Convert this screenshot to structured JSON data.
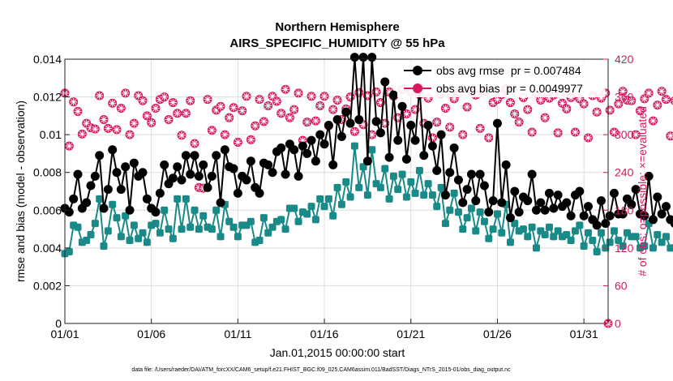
{
  "chart_data": {
    "type": "line",
    "title": [
      "Northern Hemisphere",
      "AIRS_SPECIFIC_HUMIDITY @ 55 hPa"
    ],
    "xlabel": "Jan.01,2015 00:00:00 start",
    "ylabel_left": "rmse and bias (model - observation)",
    "ylabel_right": "# of obs: o=possible; ×=evaluated",
    "footer": "data file: /Users/raeder/DAI/ATM_forcXX/CAM6_setup/f.e21.FHIST_BGC.f09_025.CAM6assim.011/BadSST/Diags_NTrS_2015-01/obs_diag_output.nc",
    "x_ticks": [
      "01/01",
      "01/06",
      "01/11",
      "01/16",
      "01/21",
      "01/26",
      "01/31"
    ],
    "x_tick_values": [
      1,
      6,
      11,
      16,
      21,
      26,
      31
    ],
    "xlim": [
      1,
      32.4
    ],
    "ylim_left": [
      0,
      0.014
    ],
    "y_ticks_left": [
      "0",
      "0.002",
      "0.004",
      "0.006",
      "0.008",
      "0.01",
      "0.012",
      "0.014"
    ],
    "ylim_right": [
      0,
      420
    ],
    "y_ticks_right": [
      "0",
      "60",
      "120",
      "180",
      "240",
      "300",
      "360",
      "420"
    ],
    "grid": true,
    "legend_position": "top-right",
    "colors": {
      "rmse": "#000000",
      "bias": "#1a8a88",
      "obs": "#d6195f"
    },
    "series": [
      {
        "name": "obs avg rmse  pr = 0.007484",
        "axis": "left",
        "start_day": 1,
        "step_days": 0.25,
        "values": [
          0.0061,
          0.0059,
          0.0066,
          0.0079,
          0.0061,
          0.0064,
          0.0073,
          0.0078,
          0.0089,
          0.0061,
          0.0071,
          0.0092,
          0.008,
          0.0071,
          0.0083,
          0.006,
          0.0085,
          0.0078,
          0.008,
          0.0066,
          0.0061,
          0.0059,
          0.0069,
          0.0084,
          0.0074,
          0.0077,
          0.0083,
          0.0076,
          0.0089,
          0.0079,
          0.0089,
          0.0078,
          0.0084,
          0.0072,
          0.0078,
          0.0089,
          0.0064,
          0.0092,
          0.0083,
          0.0082,
          0.0069,
          0.0078,
          0.0076,
          0.0086,
          0.0072,
          0.0069,
          0.0085,
          0.0084,
          0.008,
          0.0091,
          0.0093,
          0.0079,
          0.0095,
          0.0092,
          0.0078,
          0.0094,
          0.009,
          0.0097,
          0.0086,
          0.01,
          0.0095,
          0.0105,
          0.0084,
          0.0108,
          0.0099,
          0.0112,
          0.0106,
          0.0141,
          0.0108,
          0.0141,
          0.0086,
          0.0141,
          0.0107,
          0.0101,
          0.0128,
          0.0088,
          0.0121,
          0.0097,
          0.0115,
          0.0087,
          0.0105,
          0.0097,
          0.0125,
          0.0089,
          0.0105,
          0.0094,
          0.0081,
          0.01,
          0.0068,
          0.008,
          0.0093,
          0.0076,
          0.0064,
          0.0071,
          0.0079,
          0.0065,
          0.0079,
          0.0073,
          0.0059,
          0.0065,
          0.0106,
          0.0064,
          0.0084,
          0.0056,
          0.007,
          0.0059,
          0.0067,
          0.0065,
          0.0079,
          0.006,
          0.0064,
          0.006,
          0.0069,
          0.0061,
          0.0068,
          0.0062,
          0.0064,
          0.0057,
          0.0068,
          0.007,
          0.0057,
          0.0062,
          0.0055,
          0.0052,
          0.0065,
          0.0053,
          0.0057,
          0.0069,
          0.0058,
          0.0058,
          0.0066,
          0.0063,
          0.0071,
          0.0058,
          0.0057,
          0.0078,
          0.0055,
          0.0067,
          0.0058,
          0.0062,
          0.0055,
          0.0053,
          0.006,
          0.0066,
          0.0057,
          0.0069,
          0.0053,
          0.0066,
          0.0056,
          0.0063,
          0.0055,
          0.0063,
          0.0055,
          0.0065,
          0.0052,
          0.0065,
          0.0059,
          0.0064,
          0.0063,
          0.0058,
          0.0065,
          0.0055,
          0.0059,
          0.0066,
          0.0059,
          0.0058,
          0.005,
          0.0047,
          0.0057,
          0.006,
          0.0056,
          0.0055,
          0.0061,
          0.0057,
          0.0056,
          0.0064,
          0.0054,
          0.0056,
          0.0056,
          0.005,
          0.0057,
          0.0053,
          0.005,
          0.0049,
          0.0056,
          0.0053,
          0.0049,
          0.0046,
          0.0054,
          0.0057
        ]
      },
      {
        "name": "obs avg bias  pr = 0.0049977",
        "axis": "left",
        "start_day": 1,
        "step_days": 0.25,
        "values": [
          0.0037,
          0.0038,
          0.0052,
          0.0051,
          0.0043,
          0.0044,
          0.0047,
          0.0053,
          0.0066,
          0.0041,
          0.0049,
          0.0063,
          0.0056,
          0.0046,
          0.0057,
          0.0044,
          0.0052,
          0.0045,
          0.0048,
          0.0043,
          0.0052,
          0.0053,
          0.0048,
          0.006,
          0.005,
          0.0045,
          0.0066,
          0.005,
          0.0066,
          0.0051,
          0.006,
          0.005,
          0.0057,
          0.0051,
          0.005,
          0.006,
          0.0046,
          0.0063,
          0.0054,
          0.0051,
          0.0046,
          0.0052,
          0.0052,
          0.0054,
          0.0043,
          0.0044,
          0.0056,
          0.0048,
          0.0051,
          0.0054,
          0.0055,
          0.005,
          0.0061,
          0.0061,
          0.0054,
          0.0059,
          0.0058,
          0.0062,
          0.0055,
          0.0066,
          0.0062,
          0.0066,
          0.0057,
          0.0072,
          0.0063,
          0.0075,
          0.0067,
          0.0094,
          0.0072,
          0.0083,
          0.0068,
          0.0092,
          0.0074,
          0.0072,
          0.0082,
          0.0066,
          0.0078,
          0.0071,
          0.0079,
          0.0067,
          0.0075,
          0.0069,
          0.0081,
          0.0068,
          0.0074,
          0.0068,
          0.0062,
          0.0072,
          0.0053,
          0.006,
          0.0069,
          0.0059,
          0.005,
          0.0056,
          0.0061,
          0.0049,
          0.0059,
          0.0054,
          0.0045,
          0.005,
          0.0058,
          0.0048,
          0.0063,
          0.0043,
          0.0053,
          0.0049,
          0.005,
          0.0046,
          0.0051,
          0.004,
          0.0049,
          0.0047,
          0.0051,
          0.0046,
          0.0049,
          0.0046,
          0.0047,
          0.0044,
          0.0049,
          0.0052,
          0.0041,
          0.0048,
          0.0044,
          0.0038,
          0.0048,
          0.004,
          0.0043,
          0.0049,
          0.0044,
          0.0041,
          0.0048,
          0.0046,
          0.0046,
          0.004,
          0.0041,
          0.0053,
          0.004,
          0.0047,
          0.0043,
          0.0046,
          0.004,
          0.004,
          0.0046,
          0.0044,
          0.0042,
          0.0049,
          0.004,
          0.0045,
          0.0041,
          0.0044,
          0.0039,
          0.0043,
          0.0041,
          0.0045,
          0.0037,
          0.0045,
          0.0042,
          0.0045,
          0.0043,
          0.0041,
          0.0044,
          0.004,
          0.0041,
          0.0045,
          0.0042,
          0.0041,
          0.0036,
          0.0034,
          0.004,
          0.0042,
          0.0038,
          0.0037,
          0.0042,
          0.004,
          0.0038,
          0.0043,
          0.0037,
          0.0039,
          0.0039,
          0.0035,
          0.0039,
          0.0036,
          0.0037,
          0.0033,
          0.0039,
          0.0037,
          0.0036,
          0.0035,
          0.0039,
          0.0038
        ]
      },
      {
        "name": "# of obs",
        "axis": "right",
        "marker": "circle-asterisk",
        "start_day": 1,
        "step_days": 0.25,
        "values": [
          366,
          282,
          352,
          337,
          301,
          318,
          311,
          309,
          362,
          324,
          310,
          350,
          308,
          342,
          366,
          300,
          318,
          362,
          354,
          330,
          319,
          342,
          356,
          360,
          324,
          351,
          334,
          299,
          334,
          354,
          286,
          216,
          215,
          356,
          307,
          339,
          345,
          300,
          327,
          343,
          288,
          338,
          361,
          292,
          314,
          356,
          321,
          346,
          361,
          353,
          334,
          372,
          327,
          340,
          366,
          291,
          320,
          361,
          322,
          346,
          361,
          314,
          340,
          355,
          324,
          341,
          360,
          305,
          367,
          316,
          362,
          300,
          368,
          351,
          318,
          368,
          361,
          327,
          372,
          333,
          368,
          340,
          364,
          318,
          358,
          295,
          320,
          366,
          342,
          312,
          357,
          366,
          300,
          344,
          369,
          363,
          310,
          368,
          295,
          351,
          356,
          364,
          373,
          351,
          333,
          320,
          359,
          340,
          304,
          366,
          355,
          327,
          358,
          363,
          303,
          350,
          341,
          359,
          304,
          357,
          349,
          295,
          362,
          336,
          358,
          366,
          339,
          304,
          349,
          369,
          355,
          354,
          300,
          338,
          357,
          366,
          322,
          347,
          369,
          356,
          298,
          354,
          359,
          339,
          366,
          324,
          355,
          338,
          364,
          300,
          369,
          327,
          289,
          368,
          312,
          352,
          364,
          317,
          357,
          335,
          367,
          295,
          364,
          357,
          365,
          323,
          350,
          356,
          302,
          344,
          366,
          340,
          359,
          363,
          326,
          360,
          295,
          360,
          340,
          363,
          356,
          315,
          367,
          358,
          318
        ]
      }
    ]
  }
}
